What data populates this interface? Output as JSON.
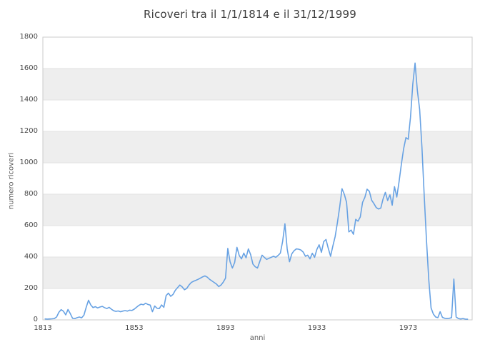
{
  "title": "Ricoveri tra il 1/1/1814 e il 31/12/1999",
  "colors": {
    "line": "#68a2e3",
    "band": "#eeeeee",
    "grid": "#e2e2e2",
    "plot_border": "#cbcbcb",
    "title_text": "#3d3d3d",
    "tick_text": "#4a4a4a",
    "axis_title_text": "#5c5c5c",
    "background": "#ffffff"
  },
  "chart_data": {
    "type": "line",
    "title": "Ricoveri tra il 1/1/1814 e il 31/12/1999",
    "xlabel": "anni",
    "ylabel": "numero ricoveri",
    "x_ticks": [
      1813,
      1853,
      1893,
      1933,
      1973
    ],
    "y_ticks": [
      0,
      200,
      400,
      600,
      800,
      1000,
      1200,
      1400,
      1600,
      1800
    ],
    "xlim": [
      1813,
      2001
    ],
    "ylim": [
      0,
      1800
    ],
    "grid": "horizontal",
    "alternating_horizontal_bands": true,
    "legend": "none",
    "x_start": 1814,
    "x_step": 1,
    "series": [
      {
        "name": "numero ricoveri",
        "values": [
          6,
          5,
          6,
          7,
          8,
          18,
          48,
          65,
          55,
          32,
          66,
          40,
          10,
          8,
          14,
          18,
          13,
          30,
          80,
          125,
          95,
          78,
          84,
          76,
          82,
          86,
          78,
          72,
          80,
          68,
          58,
          54,
          57,
          52,
          56,
          59,
          56,
          62,
          60,
          68,
          80,
          92,
          100,
          96,
          106,
          98,
          94,
          52,
          88,
          74,
          72,
          95,
          80,
          155,
          170,
          150,
          162,
          188,
          205,
          222,
          210,
          192,
          200,
          222,
          238,
          246,
          252,
          258,
          266,
          274,
          280,
          272,
          258,
          248,
          238,
          228,
          212,
          222,
          240,
          265,
          455,
          370,
          330,
          365,
          462,
          410,
          388,
          425,
          395,
          452,
          415,
          355,
          338,
          330,
          372,
          412,
          398,
          385,
          392,
          398,
          405,
          398,
          410,
          425,
          500,
          612,
          450,
          370,
          420,
          440,
          452,
          450,
          445,
          432,
          405,
          412,
          388,
          424,
          398,
          448,
          478,
          430,
          498,
          512,
          455,
          405,
          470,
          530,
          620,
          720,
          835,
          800,
          748,
          560,
          572,
          545,
          640,
          628,
          655,
          748,
          780,
          832,
          818,
          762,
          740,
          715,
          706,
          712,
          770,
          812,
          760,
          796,
          730,
          848,
          782,
          880,
          990,
          1090,
          1160,
          1150,
          1290,
          1500,
          1635,
          1460,
          1340,
          1100,
          790,
          505,
          254,
          76,
          37,
          18,
          14,
          52,
          16,
          10,
          8,
          10,
          14,
          260,
          18,
          8,
          6,
          8,
          5,
          4
        ]
      }
    ]
  }
}
